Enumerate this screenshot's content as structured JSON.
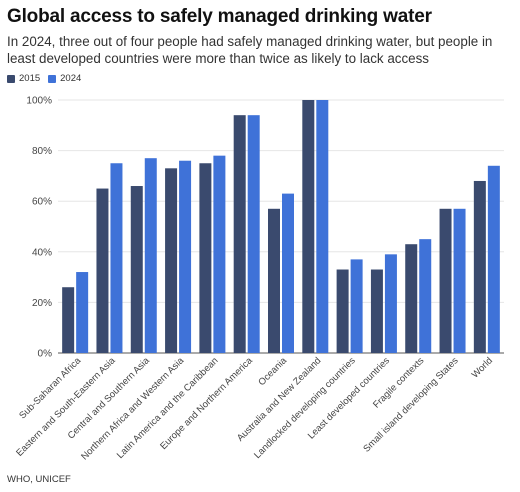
{
  "title": "Global access to safely managed drinking water",
  "subtitle": "In 2024, three out of four people had safely managed drinking water, but people in least developed countries were more than twice as likely to lack access",
  "source": "WHO, UNICEF",
  "colors": {
    "s2015": "#3a4a6e",
    "s2024": "#3f72d8",
    "grid": "#e6e6e6",
    "axis": "#555555"
  },
  "chart_data": {
    "type": "bar",
    "categories": [
      "Sub-Saharan Africa",
      "Eastern and South-Eastern Asia",
      "Central and Southern Asia",
      "Northern Africa and Western Asia",
      "Latin America and the Caribbean",
      "Europe and Northern America",
      "Oceania",
      "Australia and New Zealand",
      "Landlocked developing countries",
      "Least developed countries",
      "Fragile contexts",
      "Small island developing States",
      "World"
    ],
    "series": [
      {
        "name": "2015",
        "values": [
          26,
          65,
          66,
          73,
          75,
          94,
          57,
          100,
          33,
          33,
          43,
          57,
          68
        ]
      },
      {
        "name": "2024",
        "values": [
          32,
          75,
          77,
          76,
          78,
          94,
          63,
          100,
          37,
          39,
          45,
          57,
          74
        ]
      }
    ],
    "yticks": [
      "0%",
      "20%",
      "40%",
      "60%",
      "80%",
      "100%"
    ],
    "ylim": [
      0,
      100
    ],
    "legend": "top-left",
    "grid": true
  }
}
